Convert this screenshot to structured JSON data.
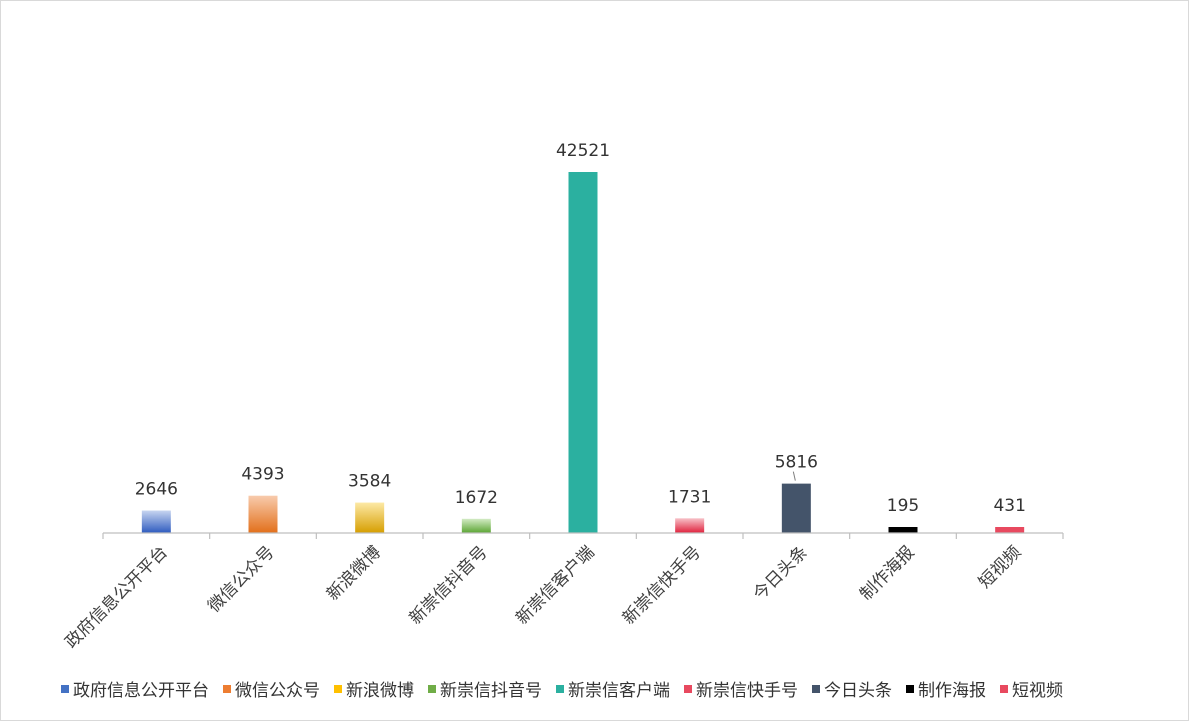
{
  "chart_data": {
    "type": "bar",
    "title": "",
    "xlabel": "",
    "ylabel": "",
    "ylim": [
      0,
      45000
    ],
    "grid": false,
    "legend_position": "bottom",
    "categories": [
      "政府信息公开平台",
      "微信公众号",
      "新浪微博",
      "新崇信抖音号",
      "新崇信客户端",
      "新崇信快手号",
      "今日头条",
      "制作海报",
      "短视频"
    ],
    "values": [
      2646,
      4393,
      3584,
      1672,
      42521,
      1731,
      5816,
      195,
      431
    ],
    "value_labels": [
      "2646",
      "4393",
      "3584",
      "1672",
      "42521",
      "1731",
      "5816",
      "195",
      "431"
    ],
    "bar_colors": [
      [
        "#c7d5f0",
        "#2e5bbf"
      ],
      [
        "#f8cbad",
        "#e26f1a"
      ],
      [
        "#fde9a6",
        "#d69e00"
      ],
      [
        "#d3ebc4",
        "#5aa532"
      ],
      [
        "#2bb0a0",
        "#2bb0a0"
      ],
      [
        "#f7c1c8",
        "#e0203c"
      ],
      [
        "#44546a",
        "#44546a"
      ],
      [
        "#000000",
        "#000000"
      ],
      [
        "#e8495f",
        "#e8495f"
      ]
    ],
    "legend_colors": [
      "#4472c4",
      "#ed7d31",
      "#ffc000",
      "#70ad47",
      "#2bb0a0",
      "#e8495f",
      "#44546a",
      "#000000",
      "#e8495f"
    ]
  }
}
